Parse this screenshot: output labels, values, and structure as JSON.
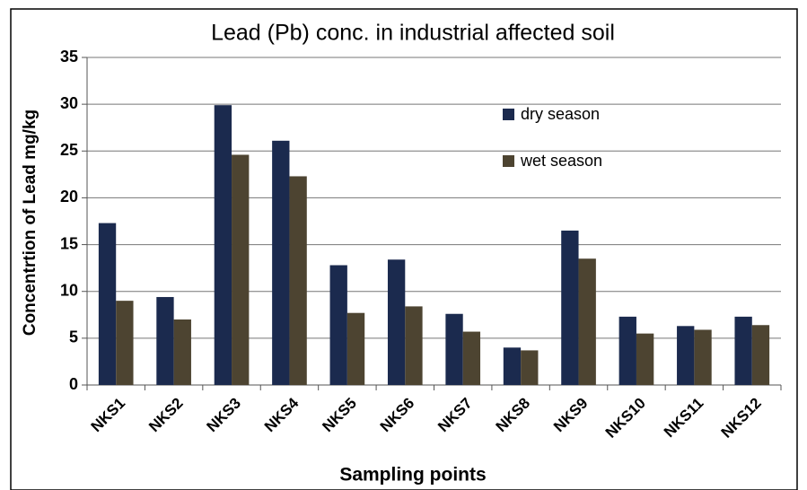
{
  "chart_data": {
    "type": "bar",
    "title": "Lead (Pb) conc. in industrial affected soil",
    "x_label": "Sampling points",
    "y_label": "Concentrtion of  Lead mg/kg",
    "categories": [
      "NKS1",
      "NKS2",
      "NKS3",
      "NKS4",
      "NKS5",
      "NKS6",
      "NKS7",
      "NKS8",
      "NKS9",
      "NKS10",
      "NKS11",
      "NKS12"
    ],
    "series": [
      {
        "name": "dry season",
        "color": "#1b2a4e",
        "values": [
          17.3,
          9.4,
          29.9,
          26.1,
          12.8,
          13.4,
          7.6,
          4.0,
          16.5,
          7.3,
          6.3,
          7.3
        ]
      },
      {
        "name": "wet season",
        "color": "#4d4431",
        "values": [
          9.0,
          7.0,
          24.6,
          22.3,
          7.7,
          8.4,
          5.7,
          3.7,
          13.5,
          5.5,
          5.9,
          6.4
        ]
      }
    ],
    "ylim": [
      0,
      35
    ],
    "yticks": [
      0,
      5,
      10,
      15,
      20,
      25,
      30,
      35
    ],
    "grid": true,
    "legend": "upper right"
  }
}
